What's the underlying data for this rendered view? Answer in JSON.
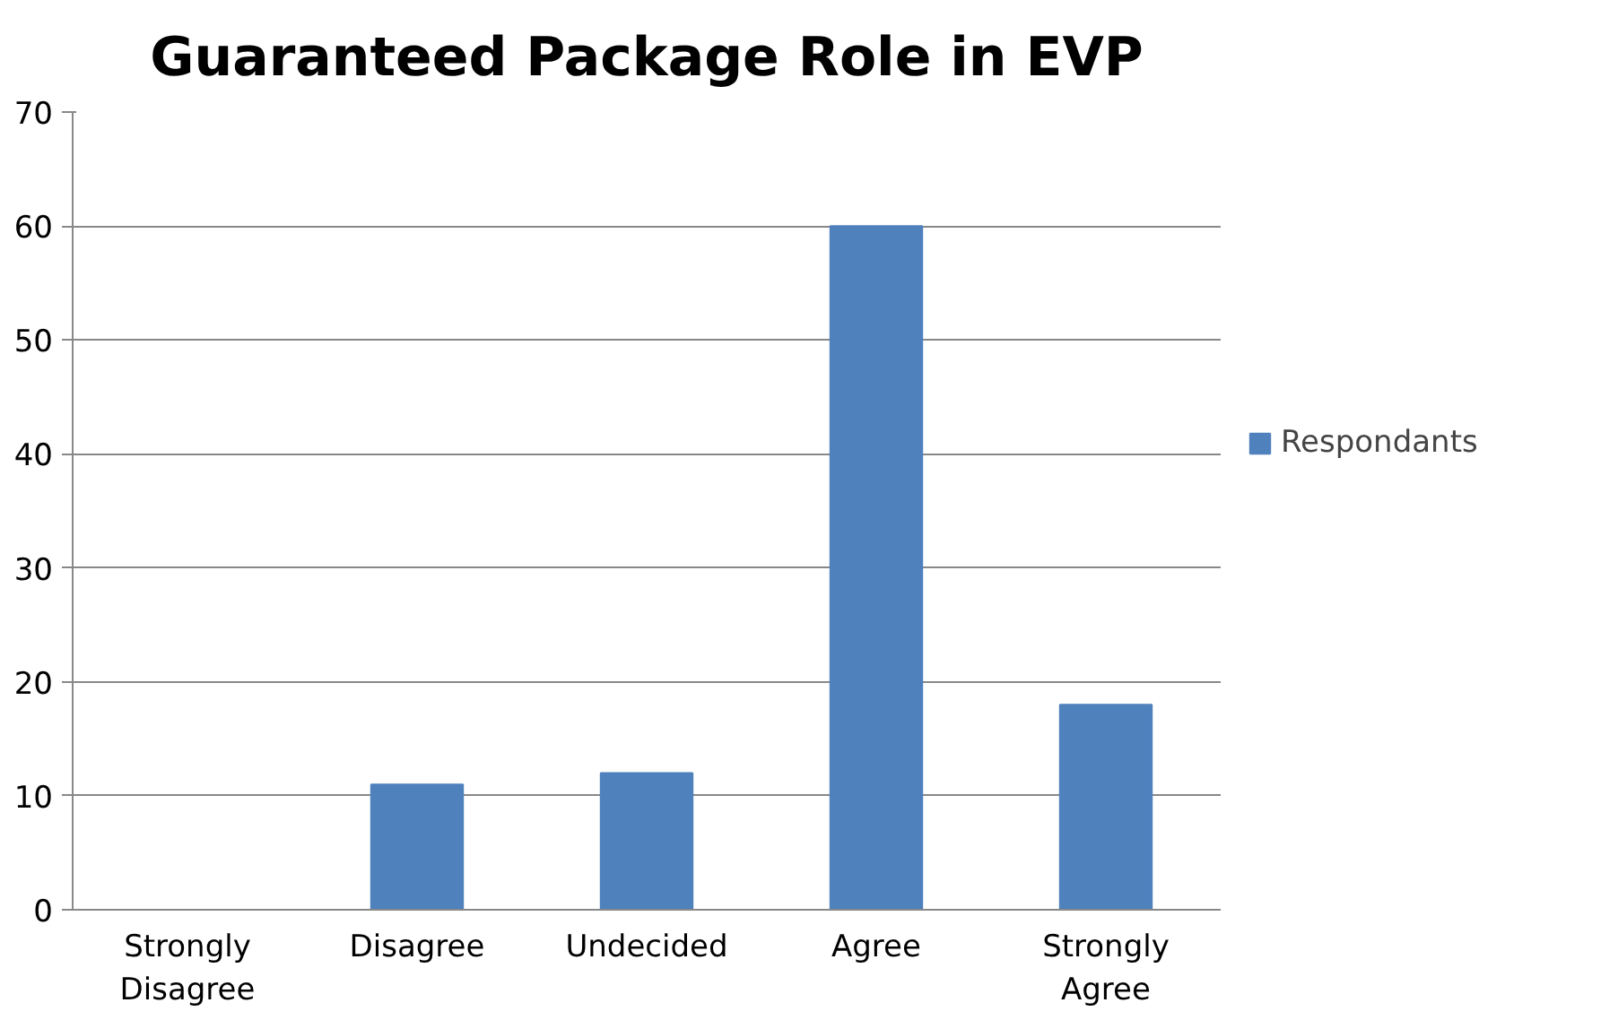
{
  "chart_data": {
    "type": "bar",
    "title": "Guaranteed Package Role in EVP",
    "categories": [
      "Strongly Disagree",
      "Disagree",
      "Undecided",
      "Agree",
      "Strongly Agree"
    ],
    "series": [
      {
        "name": "Respondants",
        "color": "#4f81bd",
        "values": [
          0,
          11,
          12,
          60,
          18
        ]
      }
    ],
    "ylim": [
      0,
      70
    ],
    "yticks": [
      0,
      10,
      20,
      30,
      40,
      50,
      60,
      70
    ],
    "grid": "y",
    "legend": "right"
  }
}
